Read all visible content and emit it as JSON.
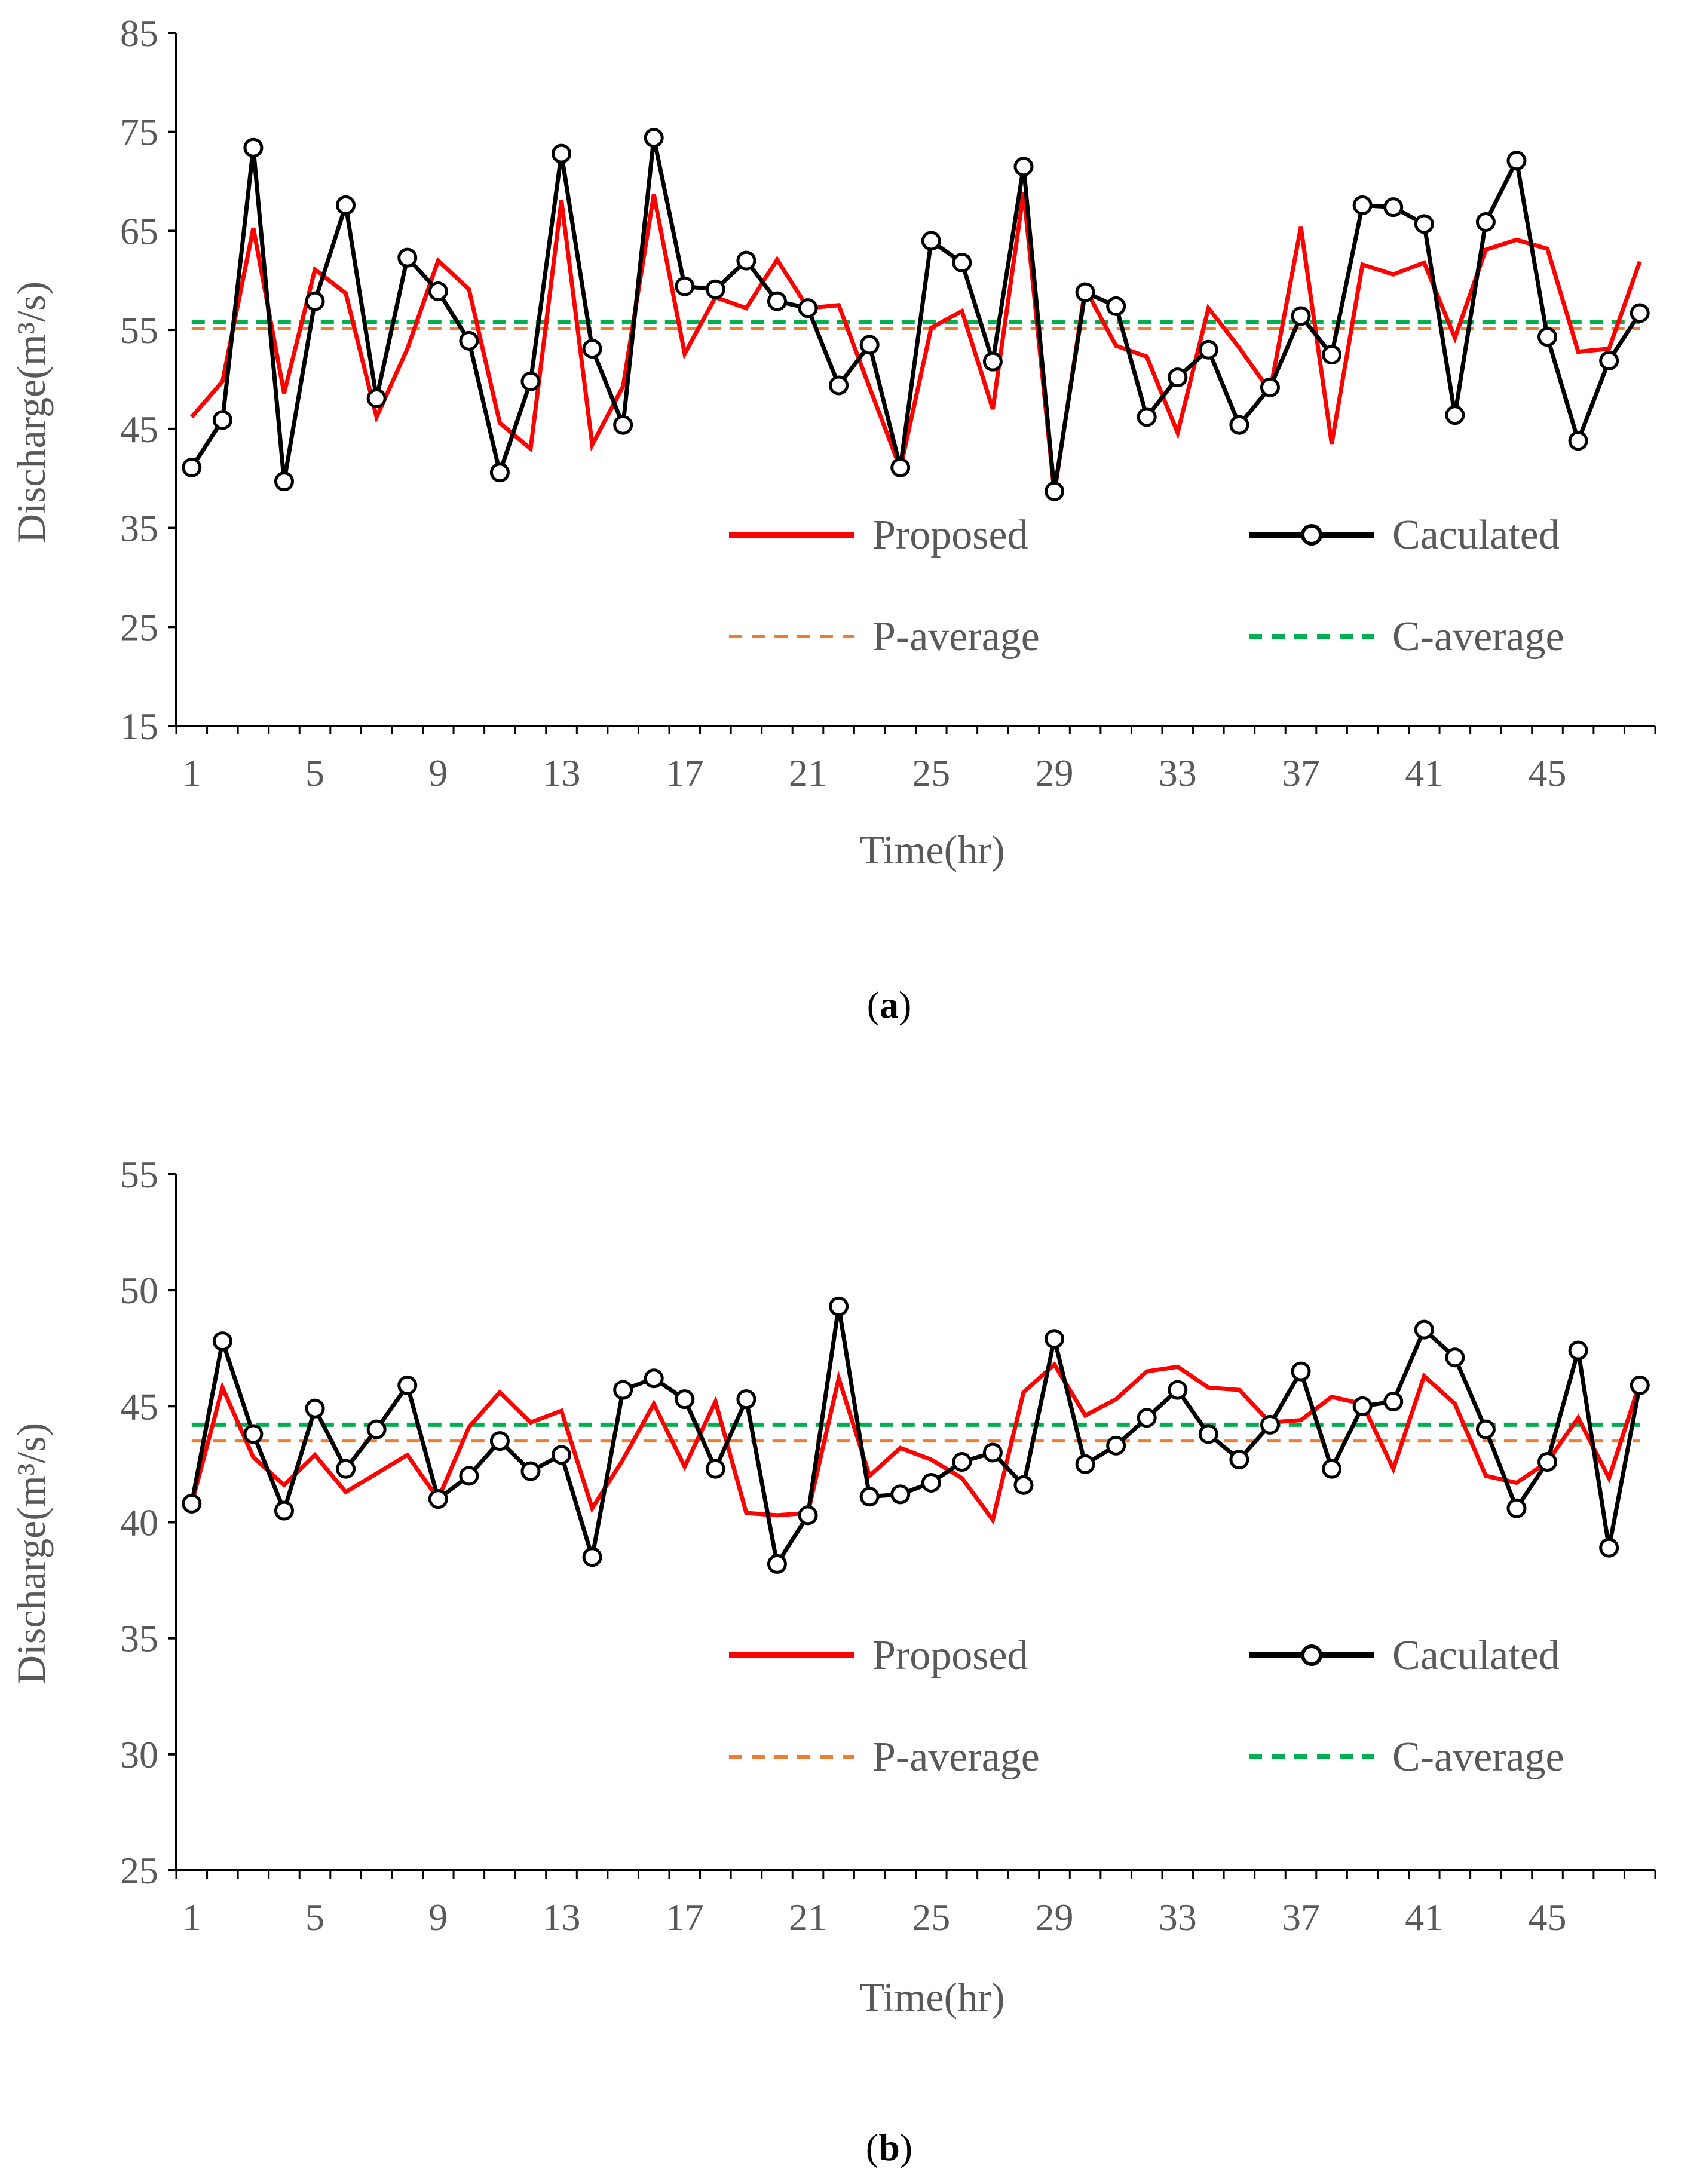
{
  "colors": {
    "proposed": "#ff0000",
    "calculated": "#000000",
    "p_average": "#ed7d31",
    "c_average": "#00b050",
    "axis": "#000000",
    "text": "#595959"
  },
  "legend": {
    "proposed": "Proposed",
    "calculated": "Caculated",
    "p_average": "P-average",
    "c_average": "C-average"
  },
  "chart_data": [
    {
      "type": "line",
      "caption_letter": "a",
      "xlabel": "Time(hr)",
      "ylabel": "Discharge(m³/s)",
      "ylim": [
        15,
        85
      ],
      "yticks": [
        15,
        25,
        35,
        45,
        55,
        65,
        75,
        85
      ],
      "xlim": [
        0.5,
        48.5
      ],
      "xticks": [
        1,
        5,
        9,
        13,
        17,
        21,
        25,
        29,
        33,
        37,
        41,
        45
      ],
      "x": [
        1,
        2,
        3,
        4,
        5,
        6,
        7,
        8,
        9,
        10,
        11,
        12,
        13,
        14,
        15,
        16,
        17,
        18,
        19,
        20,
        21,
        22,
        23,
        24,
        25,
        26,
        27,
        28,
        29,
        30,
        31,
        32,
        33,
        34,
        35,
        36,
        37,
        38,
        39,
        40,
        41,
        42,
        43,
        44,
        45,
        46,
        47,
        48
      ],
      "series": [
        {
          "name": "Proposed",
          "values": [
            46.2,
            49.8,
            65.3,
            48.6,
            61.1,
            58.7,
            46.2,
            53.1,
            62.0,
            59.1,
            45.6,
            43.0,
            68.1,
            43.4,
            49.3,
            68.7,
            52.6,
            58.3,
            57.2,
            62.1,
            57.2,
            57.5,
            49.2,
            41.0,
            55.2,
            56.9,
            47.0,
            68.9,
            38.5,
            59.2,
            53.4,
            52.3,
            44.6,
            57.2,
            53.2,
            48.8,
            65.4,
            43.5,
            61.6,
            60.6,
            61.8,
            54.2,
            63.1,
            64.1,
            63.2,
            52.8,
            53.1,
            61.9
          ]
        },
        {
          "name": "Caculated",
          "values": [
            41.1,
            45.9,
            73.4,
            39.7,
            57.9,
            67.6,
            48.1,
            62.3,
            58.9,
            53.9,
            40.6,
            49.8,
            72.8,
            53.1,
            45.4,
            74.4,
            59.4,
            59.1,
            62.0,
            57.9,
            57.2,
            49.4,
            53.5,
            41.1,
            64.0,
            61.8,
            51.8,
            71.5,
            38.7,
            58.8,
            57.4,
            46.2,
            50.2,
            53.0,
            45.4,
            49.2,
            56.4,
            52.5,
            67.6,
            67.4,
            65.7,
            46.4,
            65.9,
            72.1,
            54.3,
            43.8,
            51.9,
            56.7
          ]
        }
      ],
      "averages": {
        "P-average": 55.1,
        "C-average": 55.8
      }
    },
    {
      "type": "line",
      "caption_letter": "b",
      "xlabel": "Time(hr)",
      "ylabel": "Discharge(m³/s)",
      "ylim": [
        25,
        55
      ],
      "yticks": [
        25,
        30,
        35,
        40,
        45,
        50,
        55
      ],
      "xlim": [
        0.5,
        48.5
      ],
      "xticks": [
        1,
        5,
        9,
        13,
        17,
        21,
        25,
        29,
        33,
        37,
        41,
        45
      ],
      "x": [
        1,
        2,
        3,
        4,
        5,
        6,
        7,
        8,
        9,
        10,
        11,
        12,
        13,
        14,
        15,
        16,
        17,
        18,
        19,
        20,
        21,
        22,
        23,
        24,
        25,
        26,
        27,
        28,
        29,
        30,
        31,
        32,
        33,
        34,
        35,
        36,
        37,
        38,
        39,
        40,
        41,
        42,
        43,
        44,
        45,
        46,
        47,
        48
      ],
      "series": [
        {
          "name": "Proposed",
          "values": [
            40.8,
            45.8,
            42.8,
            41.6,
            42.9,
            41.3,
            42.1,
            42.9,
            41.0,
            44.1,
            45.6,
            44.3,
            44.8,
            40.6,
            42.7,
            45.1,
            42.4,
            45.2,
            40.4,
            40.3,
            40.4,
            46.2,
            42.0,
            43.2,
            42.7,
            41.9,
            40.1,
            45.6,
            46.8,
            44.6,
            45.3,
            46.5,
            46.7,
            45.8,
            45.7,
            44.3,
            44.4,
            45.4,
            45.1,
            42.3,
            46.3,
            45.1,
            42.0,
            41.7,
            42.6,
            44.5,
            41.9,
            46.0
          ]
        },
        {
          "name": "Caculated",
          "values": [
            40.8,
            47.8,
            43.8,
            40.5,
            44.9,
            42.3,
            44.0,
            45.9,
            41.0,
            42.0,
            43.5,
            42.2,
            42.9,
            38.5,
            45.7,
            46.2,
            45.3,
            42.3,
            45.3,
            38.2,
            40.3,
            49.3,
            41.1,
            41.2,
            41.7,
            42.6,
            43.0,
            41.6,
            47.9,
            42.5,
            43.3,
            44.5,
            45.7,
            43.8,
            42.7,
            44.2,
            46.5,
            42.3,
            45.0,
            45.2,
            48.3,
            47.1,
            44.0,
            40.6,
            42.6,
            47.4,
            38.9,
            45.9
          ]
        }
      ],
      "averages": {
        "P-average": 43.5,
        "C-average": 44.2
      }
    }
  ]
}
